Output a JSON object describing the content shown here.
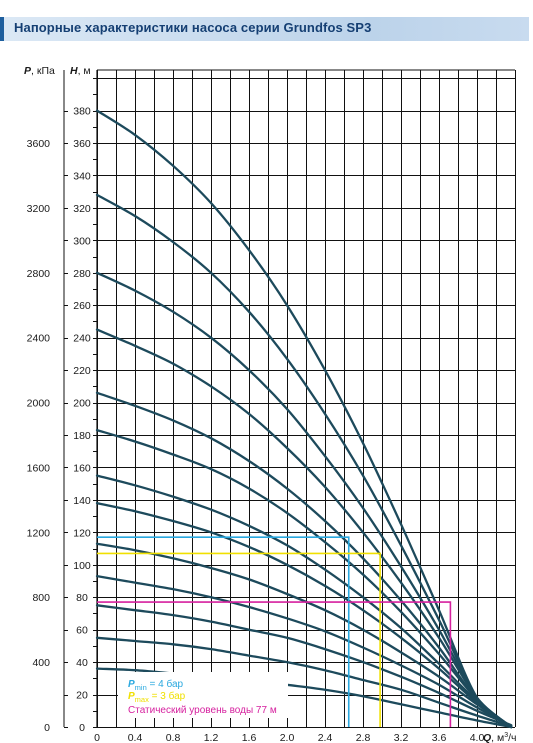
{
  "header": {
    "title": "Напорные характеристики насоса серии Grundfos SP3"
  },
  "colors": {
    "curve": "#1d4a5c",
    "grid": "#111111",
    "pmin": "#29a8df",
    "pmax": "#f0e000",
    "static": "#d6219f",
    "title_text": "#153f73"
  },
  "chart_data": {
    "type": "line",
    "x": [
      0,
      0.4,
      0.8,
      1.2,
      1.6,
      2.0,
      2.4,
      2.8,
      3.2,
      3.6,
      4.0
    ],
    "xlim": [
      0,
      4.4
    ],
    "ylim": [
      0,
      400
    ],
    "p_ylim": [
      0,
      4000
    ],
    "x_ticks": [
      "0",
      "0.4",
      "0.8",
      "1.2",
      "1.6",
      "2.0",
      "2.4",
      "2.8",
      "3.2",
      "3.6",
      "4.0"
    ],
    "y_ticks": [
      "0",
      "20",
      "40",
      "60",
      "80",
      "100",
      "120",
      "140",
      "160",
      "180",
      "200",
      "220",
      "240",
      "260",
      "280",
      "300",
      "320",
      "340",
      "360",
      "380"
    ],
    "p_ticks": [
      "0",
      "400",
      "800",
      "1200",
      "1600",
      "2000",
      "2400",
      "2800",
      "3200",
      "3600"
    ],
    "y_axis_label": {
      "symbol": "H",
      "unit": ", м"
    },
    "p_axis_label": {
      "symbol": "P",
      "unit": ", кПа"
    },
    "x_axis_label": {
      "symbol": "Q",
      "unit": ", м",
      "sup": "3",
      "tail": "/ч"
    },
    "grid": true,
    "series": [
      {
        "values": [
          380,
          365,
          346,
          323,
          294,
          260,
          220,
          175,
          125,
          72,
          18
        ]
      },
      {
        "values": [
          328,
          315,
          299,
          280,
          256,
          227,
          193,
          155,
          112,
          66,
          18
        ]
      },
      {
        "values": [
          280,
          269,
          256,
          240,
          220,
          196,
          167,
          135,
          99,
          60,
          18
        ]
      },
      {
        "values": [
          245,
          235,
          224,
          210,
          193,
          172,
          148,
          120,
          89,
          55,
          18
        ]
      },
      {
        "values": [
          206,
          198,
          189,
          178,
          164,
          147,
          127,
          104,
          78,
          49,
          17
        ]
      },
      {
        "values": [
          183,
          176,
          168,
          159,
          147,
          132,
          114,
          94,
          71,
          45,
          17
        ]
      },
      {
        "values": [
          155,
          149,
          142,
          134,
          124,
          112,
          97,
          80,
          61,
          39,
          16
        ]
      },
      {
        "values": [
          138,
          133,
          127,
          120,
          111,
          100,
          87,
          72,
          55,
          36,
          15
        ]
      },
      {
        "values": [
          113,
          109,
          104,
          98,
          91,
          82,
          72,
          60,
          46,
          31,
          14
        ]
      },
      {
        "values": [
          93,
          89,
          85,
          80,
          74,
          67,
          59,
          49,
          38,
          26,
          12
        ]
      },
      {
        "values": [
          75,
          72,
          69,
          65,
          60,
          55,
          48,
          40,
          31,
          21,
          10
        ]
      },
      {
        "values": [
          55,
          53,
          51,
          48,
          44,
          40,
          35,
          29,
          23,
          15,
          7
        ]
      },
      {
        "values": [
          36,
          35,
          33,
          31,
          29,
          26,
          23,
          19,
          14,
          9,
          4
        ]
      }
    ],
    "markers": [
      {
        "id": "pmin",
        "x": 2.65,
        "y": 117
      },
      {
        "id": "pmax",
        "x": 2.98,
        "y": 107
      },
      {
        "id": "static",
        "x": 3.72,
        "y": 77
      }
    ],
    "legend": {
      "placement": "bottom-left",
      "items": [
        {
          "id": "pmin",
          "symbol": "P",
          "sub": "min",
          "text": " = 4 бар"
        },
        {
          "id": "pmax",
          "symbol": "P",
          "sub": "max",
          "text": " = 3 бар"
        },
        {
          "id": "static",
          "symbol": "",
          "sub": "",
          "text": "Статический уровень воды 77 м"
        }
      ]
    }
  }
}
